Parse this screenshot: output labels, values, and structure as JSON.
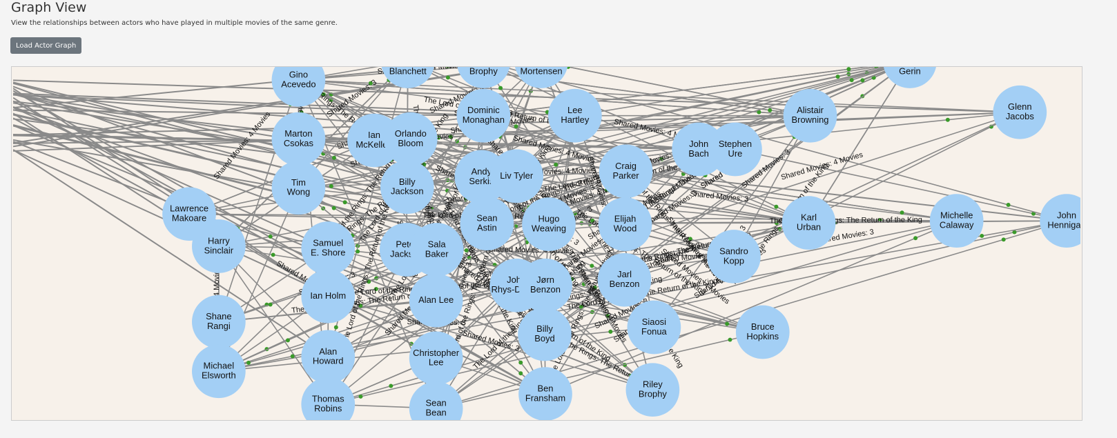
{
  "header": {
    "title": "Graph View",
    "description": "View the relationships between actors who have played in multiple movies of the same genre.",
    "button": "Load Actor Graph"
  },
  "graph": {
    "edge_labels": [
      "Shared Movies: 3",
      "Shared Movies: 4 Movies",
      "The Lord of the Rings: The Return of the King"
    ],
    "nodes": [
      {
        "lines": [
          "Gino",
          "Acevedo"
        ]
      },
      {
        "lines": [
          "Blanchett"
        ]
      },
      {
        "lines": [
          "Brophy"
        ]
      },
      {
        "lines": [
          "Mortensen"
        ]
      },
      {
        "lines": [
          "Gerin"
        ]
      },
      {
        "lines": [
          "Dominic",
          "Monaghan"
        ]
      },
      {
        "lines": [
          "Lee",
          "Hartley"
        ]
      },
      {
        "lines": [
          "Alistair",
          "Browning"
        ]
      },
      {
        "lines": [
          "Glenn",
          "Jacobs"
        ]
      },
      {
        "lines": [
          "Marton",
          "Csokas"
        ]
      },
      {
        "lines": [
          "Ian",
          "McKellen"
        ]
      },
      {
        "lines": [
          "Orlando",
          "Bloom"
        ]
      },
      {
        "lines": [
          "John",
          "Bach"
        ]
      },
      {
        "lines": [
          "Stephen",
          "Ure"
        ]
      },
      {
        "lines": [
          "Tim",
          "Wong"
        ]
      },
      {
        "lines": [
          "Billy",
          "Jackson"
        ]
      },
      {
        "lines": [
          "Andy",
          "Serkis"
        ]
      },
      {
        "lines": [
          "Liv Tyler"
        ]
      },
      {
        "lines": [
          "Craig",
          "Parker"
        ]
      },
      {
        "lines": [
          "Lawrence",
          "Makoare"
        ]
      },
      {
        "lines": [
          "Sean",
          "Astin"
        ]
      },
      {
        "lines": [
          "Hugo",
          "Weaving"
        ]
      },
      {
        "lines": [
          "Elijah",
          "Wood"
        ]
      },
      {
        "lines": [
          "Karl",
          "Urban"
        ]
      },
      {
        "lines": [
          "Michelle",
          "Calaway"
        ]
      },
      {
        "lines": [
          "John",
          "Hennigan"
        ]
      },
      {
        "lines": [
          "Harry",
          "Sinclair"
        ]
      },
      {
        "lines": [
          "Samuel",
          "E. Shore"
        ]
      },
      {
        "lines": [
          "Peter",
          "Jackson"
        ]
      },
      {
        "lines": [
          "Sala",
          "Baker"
        ]
      },
      {
        "lines": [
          "Sandro",
          "Kopp"
        ]
      },
      {
        "lines": [
          "Ian Holm"
        ]
      },
      {
        "lines": [
          "Alan Lee"
        ]
      },
      {
        "lines": [
          "John",
          "Rhys-Davies"
        ]
      },
      {
        "lines": [
          "Jørn",
          "Benzon"
        ]
      },
      {
        "lines": [
          "Jarl",
          "Benzon"
        ]
      },
      {
        "lines": [
          "Shane",
          "Rangi"
        ]
      },
      {
        "lines": [
          "Siaosi",
          "Fonua"
        ]
      },
      {
        "lines": [
          "Bruce",
          "Hopkins"
        ]
      },
      {
        "lines": [
          "Billy",
          "Boyd"
        ]
      },
      {
        "lines": [
          "Alan",
          "Howard"
        ]
      },
      {
        "lines": [
          "Christopher",
          "Lee"
        ]
      },
      {
        "lines": [
          "Michael",
          "Elsworth"
        ]
      },
      {
        "lines": [
          "Riley",
          "Brophy"
        ]
      },
      {
        "lines": [
          "Ben",
          "Fransham"
        ]
      },
      {
        "lines": [
          "Thomas",
          "Robins"
        ]
      },
      {
        "lines": [
          "Sean",
          "Bean"
        ]
      }
    ]
  }
}
